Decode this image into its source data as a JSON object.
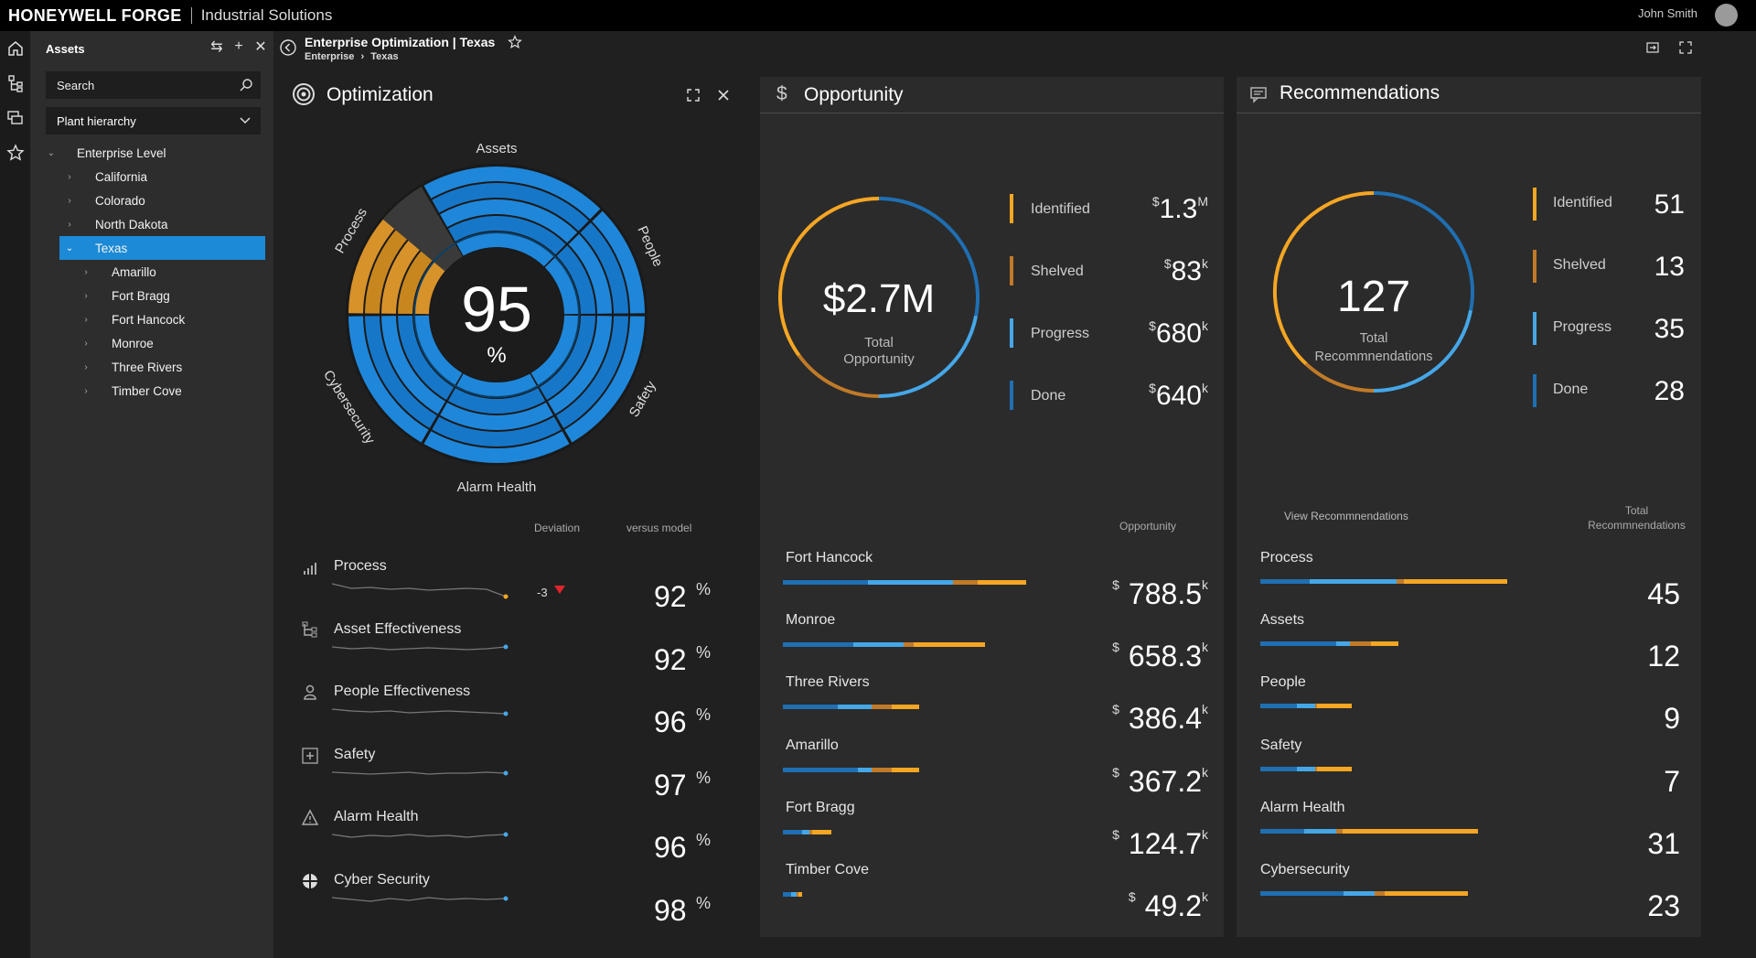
{
  "brand": {
    "name": "HONEYWELL FORGE",
    "subtitle": "Industrial Solutions"
  },
  "user": {
    "name": "John Smith"
  },
  "assets_panel": {
    "title": "Assets",
    "search_placeholder": "Search",
    "hierarchy_select": "Plant hierarchy",
    "tree": {
      "root": "Enterprise Level",
      "states": [
        "California",
        "Colorado",
        "North Dakota"
      ],
      "selected": "Texas",
      "sites": [
        "Amarillo",
        "Fort Bragg",
        "Fort Hancock",
        "Monroe",
        "Three Rivers",
        "Timber Cove"
      ]
    }
  },
  "breadcrumb": {
    "title": "Enterprise Optimization | Texas",
    "path": [
      "Enterprise",
      "Texas"
    ],
    "separator": "›"
  },
  "optimization": {
    "title": "Optimization",
    "score": "95",
    "score_unit": "%",
    "segments": [
      "Assets",
      "People",
      "Safety",
      "Alarm Health",
      "Cybersecurity",
      "Process"
    ],
    "col_deviation": "Deviation",
    "col_versus": "versus model",
    "rows": [
      {
        "label": "Process",
        "deviation": "-3",
        "value": "92",
        "unit": "%"
      },
      {
        "label": "Asset Effectiveness",
        "deviation": "",
        "value": "92",
        "unit": "%"
      },
      {
        "label": "People Effectiveness",
        "deviation": "",
        "value": "96",
        "unit": "%"
      },
      {
        "label": "Safety",
        "deviation": "",
        "value": "97",
        "unit": "%"
      },
      {
        "label": "Alarm Health",
        "deviation": "",
        "value": "96",
        "unit": "%"
      },
      {
        "label": "Cyber Security",
        "deviation": "",
        "value": "98",
        "unit": "%"
      }
    ]
  },
  "opportunity": {
    "title": "Opportunity",
    "total": "$2.7M",
    "total_label": "Total Opportunity",
    "stats": [
      {
        "label": "Identified",
        "cur": "$",
        "value": "1.3",
        "unit": "M",
        "color": "#f5a623"
      },
      {
        "label": "Shelved",
        "cur": "$",
        "value": "83",
        "unit": "k",
        "color": "#c07a28"
      },
      {
        "label": "Progress",
        "cur": "$",
        "value": "680",
        "unit": "k",
        "color": "#45a7e8"
      },
      {
        "label": "Done",
        "cur": "$",
        "value": "640",
        "unit": "k",
        "color": "#1f6fb2"
      }
    ],
    "col_header": "Opportunity",
    "sites": [
      {
        "name": "Fort Hancock",
        "cur": "$",
        "value": "788.5",
        "unit": "k",
        "segments": [
          0.35,
          0.7,
          0.8,
          1.0
        ],
        "fill": 1.0
      },
      {
        "name": "Monroe",
        "cur": "$",
        "value": "658.3",
        "unit": "k",
        "segments": [
          0.35,
          0.6,
          0.65,
          1.0
        ],
        "fill": 0.83
      },
      {
        "name": "Three Rivers",
        "cur": "$",
        "value": "386.4",
        "unit": "k",
        "segments": [
          0.4,
          0.65,
          0.8,
          1.0
        ],
        "fill": 0.56
      },
      {
        "name": "Amarillo",
        "cur": "$",
        "value": "367.2",
        "unit": "k",
        "segments": [
          0.55,
          0.65,
          0.8,
          1.0
        ],
        "fill": 0.56
      },
      {
        "name": "Fort Bragg",
        "cur": "$",
        "value": "124.7",
        "unit": "k",
        "segments": [
          0.4,
          0.55,
          0.6,
          1.0
        ],
        "fill": 0.2
      },
      {
        "name": "Timber Cove",
        "cur": "$",
        "value": "49.2",
        "unit": "k",
        "segments": [
          0.4,
          0.7,
          0.8,
          1.0
        ],
        "fill": 0.08
      }
    ]
  },
  "recommendations": {
    "title": "Recommendations",
    "total": "127",
    "total_label": "Total Recommnendations",
    "stats": [
      {
        "label": "Identified",
        "value": "51",
        "color": "#f5a623"
      },
      {
        "label": "Shelved",
        "value": "13",
        "color": "#c07a28"
      },
      {
        "label": "Progress",
        "value": "35",
        "color": "#45a7e8"
      },
      {
        "label": "Done",
        "value": "28",
        "color": "#1f6fb2"
      }
    ],
    "view_link": "View Recommnendations",
    "col_header": "Total Recommnendations",
    "items": [
      {
        "name": "Process",
        "value": "45",
        "segments": [
          0.2,
          0.55,
          0.58,
          1.0
        ],
        "fill": 1.0
      },
      {
        "name": "Assets",
        "value": "12",
        "segments": [
          0.55,
          0.65,
          0.8,
          1.0
        ],
        "fill": 0.56
      },
      {
        "name": "People",
        "value": "9",
        "segments": [
          0.4,
          0.6,
          0.62,
          1.0
        ],
        "fill": 0.37
      },
      {
        "name": "Safety",
        "value": "7",
        "segments": [
          0.4,
          0.6,
          0.62,
          1.0
        ],
        "fill": 0.37
      },
      {
        "name": "Alarm Health",
        "value": "31",
        "segments": [
          0.2,
          0.35,
          0.38,
          1.0
        ],
        "fill": 0.88
      },
      {
        "name": "Cybersecurity",
        "value": "23",
        "segments": [
          0.4,
          0.55,
          0.6,
          1.0
        ],
        "fill": 0.84
      }
    ]
  },
  "colors": {
    "orange": "#f5a623",
    "dark_orange": "#c07a28",
    "light_blue": "#45a7e8",
    "blue": "#1f6fb2",
    "accent": "#1c8ad6"
  }
}
